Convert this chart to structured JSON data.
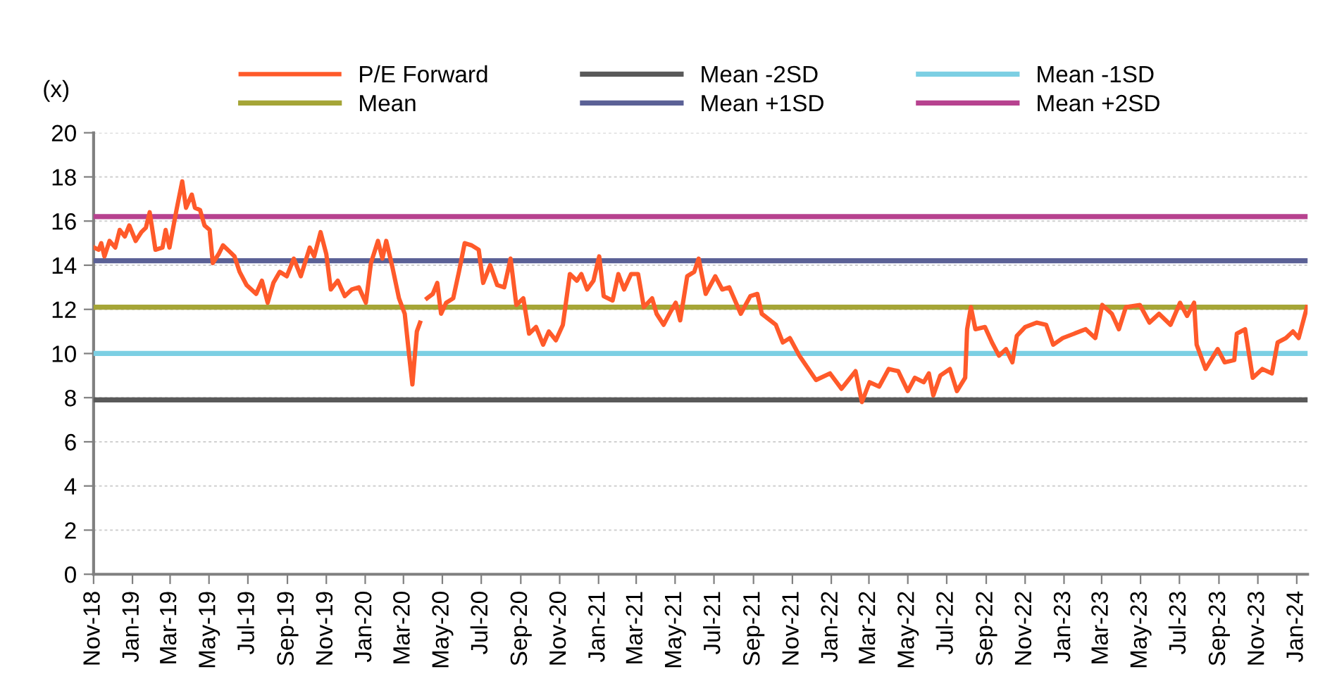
{
  "chart_data": {
    "type": "line",
    "ylabel": "(x)",
    "legend": "top",
    "grid": "y",
    "line_style": "solid",
    "marker": "none",
    "xlim": [
      "2018-11-01",
      "2024-01-18"
    ],
    "ylim": [
      0,
      20
    ],
    "yticks": [
      0,
      2,
      4,
      6,
      8,
      10,
      12,
      14,
      16,
      18,
      20
    ],
    "xticks": [
      {
        "value": "2018-11-01",
        "label": "Nov-18"
      },
      {
        "value": "2019-01-01",
        "label": "Jan-19"
      },
      {
        "value": "2019-03-01",
        "label": "Mar-19"
      },
      {
        "value": "2019-05-01",
        "label": "May-19"
      },
      {
        "value": "2019-07-01",
        "label": "Jul-19"
      },
      {
        "value": "2019-09-01",
        "label": "Sep-19"
      },
      {
        "value": "2019-11-01",
        "label": "Nov-19"
      },
      {
        "value": "2020-01-01",
        "label": "Jan-20"
      },
      {
        "value": "2020-03-01",
        "label": "Mar-20"
      },
      {
        "value": "2020-05-01",
        "label": "May-20"
      },
      {
        "value": "2020-07-01",
        "label": "Jul-20"
      },
      {
        "value": "2020-09-01",
        "label": "Sep-20"
      },
      {
        "value": "2020-11-01",
        "label": "Nov-20"
      },
      {
        "value": "2021-01-01",
        "label": "Jan-21"
      },
      {
        "value": "2021-03-01",
        "label": "Mar-21"
      },
      {
        "value": "2021-05-01",
        "label": "May-21"
      },
      {
        "value": "2021-07-01",
        "label": "Jul-21"
      },
      {
        "value": "2021-09-01",
        "label": "Sep-21"
      },
      {
        "value": "2021-11-01",
        "label": "Nov-21"
      },
      {
        "value": "2022-01-01",
        "label": "Jan-22"
      },
      {
        "value": "2022-03-01",
        "label": "Mar-22"
      },
      {
        "value": "2022-05-01",
        "label": "May-22"
      },
      {
        "value": "2022-07-01",
        "label": "Jul-22"
      },
      {
        "value": "2022-09-01",
        "label": "Sep-22"
      },
      {
        "value": "2022-11-01",
        "label": "Nov-22"
      },
      {
        "value": "2023-01-01",
        "label": "Jan-23"
      },
      {
        "value": "2023-03-01",
        "label": "Mar-23"
      },
      {
        "value": "2023-05-01",
        "label": "May-23"
      },
      {
        "value": "2023-07-01",
        "label": "Jul-23"
      },
      {
        "value": "2023-09-01",
        "label": "Sep-23"
      },
      {
        "value": "2023-11-01",
        "label": "Nov-23"
      },
      {
        "value": "2024-01-01",
        "label": "Jan-24"
      }
    ],
    "series": [
      {
        "name": "P/E Forward",
        "color": "#ff5a2a",
        "x": [
          "2018-11-02",
          "2018-11-09",
          "2018-11-13",
          "2018-11-18",
          "2018-11-26",
          "2018-12-05",
          "2018-12-12",
          "2018-12-20",
          "2018-12-27",
          "2019-01-06",
          "2019-01-15",
          "2019-01-22",
          "2019-01-28",
          "2019-02-06",
          "2019-02-17",
          "2019-02-22",
          "2019-02-28",
          "2019-03-11",
          "2019-03-20",
          "2019-03-26",
          "2019-04-04",
          "2019-04-09",
          "2019-04-17",
          "2019-04-24",
          "2019-05-02",
          "2019-05-07",
          "2019-05-16",
          "2019-05-23",
          "2019-06-03",
          "2019-06-10",
          "2019-06-18",
          "2019-06-29",
          "2019-07-14",
          "2019-07-23",
          "2019-08-01",
          "2019-08-10",
          "2019-08-20",
          "2019-08-31",
          "2019-09-11",
          "2019-09-22",
          "2019-10-06",
          "2019-10-13",
          "2019-10-23",
          "2019-11-01",
          "2019-11-08",
          "2019-11-19",
          "2019-11-30",
          "2019-12-11",
          "2019-12-22",
          "2020-01-02",
          "2020-01-10",
          "2020-01-21",
          "2020-01-28",
          "2020-02-03",
          "2020-02-12",
          "2020-02-23",
          "2020-03-03",
          "2020-03-10",
          "2020-03-15",
          "2020-03-22",
          "2020-03-27",
          "2020-04-01",
          "2020-04-07",
          "2020-04-16",
          "2020-04-23",
          "2020-04-29",
          "2020-05-07",
          "2020-05-18",
          "2020-05-27",
          "2020-06-05",
          "2020-06-16",
          "2020-06-27",
          "2020-07-04",
          "2020-07-15",
          "2020-07-26",
          "2020-08-06",
          "2020-08-16",
          "2020-08-25",
          "2020-09-05",
          "2020-09-14",
          "2020-09-25",
          "2020-10-06",
          "2020-10-15",
          "2020-10-26",
          "2020-11-06",
          "2020-11-17",
          "2020-11-28",
          "2020-12-05",
          "2020-12-14",
          "2020-12-24",
          "2021-01-02",
          "2021-01-09",
          "2021-01-23",
          "2021-02-01",
          "2021-02-10",
          "2021-02-21",
          "2021-03-04",
          "2021-03-13",
          "2021-03-26",
          "2021-04-02",
          "2021-04-13",
          "2021-04-24",
          "2021-05-02",
          "2021-05-09",
          "2021-05-20",
          "2021-05-31",
          "2021-06-07",
          "2021-06-18",
          "2021-07-03",
          "2021-07-14",
          "2021-07-25",
          "2021-08-12",
          "2021-08-27",
          "2021-09-07",
          "2021-09-14",
          "2021-10-06",
          "2021-10-17",
          "2021-10-28",
          "2021-11-12",
          "2021-12-08",
          "2021-12-30",
          "2022-01-17",
          "2022-02-08",
          "2022-02-18",
          "2022-03-02",
          "2022-03-17",
          "2022-04-01",
          "2022-04-16",
          "2022-05-01",
          "2022-05-12",
          "2022-05-26",
          "2022-06-03",
          "2022-06-10",
          "2022-06-21",
          "2022-07-06",
          "2022-07-17",
          "2022-07-30",
          "2022-08-02",
          "2022-08-08",
          "2022-08-15",
          "2022-08-30",
          "2022-09-10",
          "2022-09-21",
          "2022-10-02",
          "2022-10-12",
          "2022-10-19",
          "2022-11-01",
          "2022-11-19",
          "2022-12-04",
          "2022-12-15",
          "2022-12-30",
          "2023-01-17",
          "2023-02-04",
          "2023-02-19",
          "2023-03-02",
          "2023-03-17",
          "2023-03-28",
          "2023-04-08",
          "2023-04-30",
          "2023-05-15",
          "2023-05-30",
          "2023-06-17",
          "2023-07-02",
          "2023-07-13",
          "2023-07-24",
          "2023-07-28",
          "2023-08-11",
          "2023-08-30",
          "2023-09-10",
          "2023-09-25",
          "2023-09-29",
          "2023-10-12",
          "2023-10-24",
          "2023-11-08",
          "2023-11-23",
          "2023-12-02",
          "2023-12-15",
          "2023-12-26",
          "2024-01-04",
          "2024-01-17"
        ],
        "values": [
          14.8,
          14.7,
          15.0,
          14.4,
          15.1,
          14.8,
          15.6,
          15.3,
          15.8,
          15.1,
          15.5,
          15.7,
          16.4,
          14.7,
          14.8,
          15.6,
          14.8,
          16.5,
          17.8,
          16.6,
          17.2,
          16.6,
          16.5,
          15.8,
          15.6,
          14.1,
          14.5,
          14.9,
          14.6,
          14.4,
          13.7,
          13.1,
          12.7,
          13.3,
          12.3,
          13.2,
          13.7,
          13.5,
          14.3,
          13.5,
          14.8,
          14.4,
          15.5,
          14.5,
          12.9,
          13.3,
          12.6,
          12.9,
          13.0,
          12.3,
          14.1,
          15.1,
          14.3,
          15.1,
          14.0,
          12.5,
          11.8,
          9.9,
          8.6,
          11.0,
          11.4,
          null,
          12.5,
          12.7,
          13.2,
          11.8,
          12.3,
          12.5,
          13.7,
          15.0,
          14.9,
          14.7,
          13.2,
          14.0,
          13.1,
          13.0,
          14.3,
          12.2,
          12.5,
          10.9,
          11.2,
          10.4,
          11.0,
          10.6,
          11.3,
          13.6,
          13.3,
          13.6,
          12.9,
          13.3,
          14.4,
          12.6,
          12.4,
          13.6,
          12.9,
          13.6,
          13.6,
          12.1,
          12.5,
          11.8,
          11.3,
          11.9,
          12.3,
          11.5,
          13.5,
          13.7,
          14.3,
          12.7,
          13.5,
          12.9,
          13.0,
          11.8,
          12.6,
          12.7,
          11.8,
          11.3,
          10.5,
          10.7,
          9.9,
          8.8,
          9.1,
          8.4,
          9.2,
          7.8,
          8.7,
          8.5,
          9.3,
          9.2,
          8.3,
          8.9,
          8.7,
          9.1,
          8.1,
          9.0,
          9.3,
          8.3,
          8.9,
          11.1,
          12.1,
          11.1,
          11.2,
          10.5,
          9.9,
          10.2,
          9.6,
          10.8,
          11.2,
          11.4,
          11.3,
          10.4,
          10.7,
          10.9,
          11.1,
          10.7,
          12.2,
          11.8,
          11.1,
          12.1,
          12.2,
          11.4,
          11.8,
          11.3,
          12.3,
          11.7,
          12.3,
          10.4,
          9.3,
          10.2,
          9.6,
          9.7,
          10.9,
          11.1,
          8.9,
          9.3,
          9.1,
          10.5,
          10.7,
          11.0,
          10.7,
          12.1
        ]
      },
      {
        "name": "Mean -2SD",
        "color": "#595959",
        "x": [
          "2018-11-01",
          "2024-01-18"
        ],
        "values": [
          7.9,
          7.9
        ]
      },
      {
        "name": "Mean -1SD",
        "color": "#7ccfe3",
        "x": [
          "2018-11-01",
          "2024-01-18"
        ],
        "values": [
          10.0,
          10.0
        ]
      },
      {
        "name": "Mean",
        "color": "#a5a537",
        "x": [
          "2018-11-01",
          "2024-01-18"
        ],
        "values": [
          12.1,
          12.1
        ]
      },
      {
        "name": "Mean +1SD",
        "color": "#5b6196",
        "x": [
          "2018-11-01",
          "2024-01-18"
        ],
        "values": [
          14.2,
          14.2
        ]
      },
      {
        "name": "Mean +2SD",
        "color": "#b7428f",
        "x": [
          "2018-11-01",
          "2024-01-18"
        ],
        "values": [
          16.2,
          16.2
        ]
      }
    ]
  }
}
